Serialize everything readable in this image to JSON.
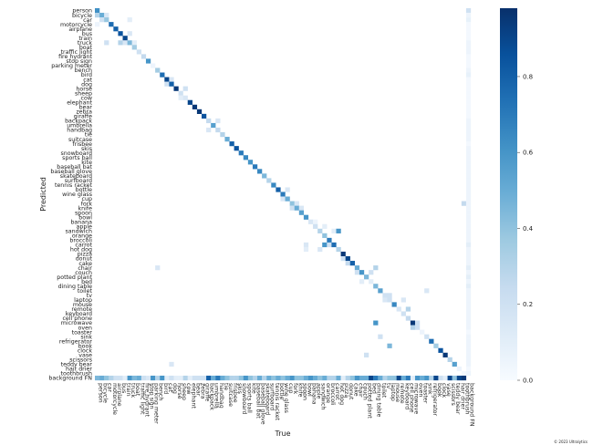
{
  "chart_data": {
    "type": "heatmap",
    "title": "",
    "xlabel": "True",
    "ylabel": "Predicted",
    "classes": [
      "person",
      "bicycle",
      "car",
      "motorcycle",
      "airplane",
      "bus",
      "train",
      "truck",
      "boat",
      "traffic light",
      "fire hydrant",
      "stop sign",
      "parking meter",
      "bench",
      "bird",
      "cat",
      "dog",
      "horse",
      "sheep",
      "cow",
      "elephant",
      "bear",
      "zebra",
      "giraffe",
      "backpack",
      "umbrella",
      "handbag",
      "tie",
      "suitcase",
      "frisbee",
      "skis",
      "snowboard",
      "sports ball",
      "kite",
      "baseball bat",
      "baseball glove",
      "skateboard",
      "surfboard",
      "tennis racket",
      "bottle",
      "wine glass",
      "cup",
      "fork",
      "knife",
      "spoon",
      "bowl",
      "banana",
      "apple",
      "sandwich",
      "orange",
      "broccoli",
      "carrot",
      "hot dog",
      "pizza",
      "donut",
      "cake",
      "chair",
      "couch",
      "potted plant",
      "bed",
      "dining table",
      "toilet",
      "tv",
      "laptop",
      "mouse",
      "remote",
      "keyboard",
      "cell phone",
      "microwave",
      "oven",
      "toaster",
      "sink",
      "refrigerator",
      "book",
      "clock",
      "vase",
      "scissors",
      "teddy bear",
      "hair drier",
      "toothbrush",
      "background FN"
    ],
    "x_categories_ref": "classes",
    "y_categories_ref": "classes",
    "diagonal_values": [
      0.62,
      0.5,
      0.38,
      0.75,
      0.8,
      0.85,
      0.9,
      0.45,
      0.35,
      0.2,
      0.25,
      0.6,
      0.05,
      0.35,
      0.75,
      0.9,
      0.8,
      0.95,
      0.2,
      0.15,
      0.9,
      0.95,
      0.95,
      0.85,
      0.25,
      0.55,
      0.25,
      0.3,
      0.5,
      0.8,
      0.85,
      0.7,
      0.65,
      0.6,
      0.7,
      0.65,
      0.45,
      0.3,
      0.65,
      0.8,
      0.7,
      0.5,
      0.4,
      0.5,
      0.55,
      0.6,
      0.15,
      0.2,
      0.3,
      0.4,
      0.7,
      0.75,
      0.3,
      0.95,
      0.9,
      0.8,
      0.5,
      0.6,
      0.45,
      0.1,
      0.45,
      0.55,
      0.2,
      0.2,
      0.65,
      0.15,
      0.2,
      0.25,
      0.95,
      0.2,
      0.05,
      0.2,
      0.75,
      0.35,
      0.85,
      0.95,
      0.3,
      0.55,
      0.05,
      0.02,
      0.0
    ],
    "off_diagonal": [
      {
        "x": "person",
        "y": "bicycle",
        "value": 0.3
      },
      {
        "x": "car",
        "y": "bicycle",
        "value": 0.15
      },
      {
        "x": "bicycle",
        "y": "car",
        "value": 0.2
      },
      {
        "x": "truck",
        "y": "car",
        "value": 0.1
      },
      {
        "x": "bus",
        "y": "truck",
        "value": 0.3
      },
      {
        "x": "car",
        "y": "truck",
        "value": 0.2
      },
      {
        "x": "train",
        "y": "truck",
        "value": 0.15
      },
      {
        "x": "truck",
        "y": "bus",
        "value": 0.15
      },
      {
        "x": "boat",
        "y": "truck",
        "value": 0.1
      },
      {
        "x": "person",
        "y": "motorcycle",
        "value": 0.05
      },
      {
        "x": "dog",
        "y": "cat",
        "value": 0.15
      },
      {
        "x": "cat",
        "y": "dog",
        "value": 0.2
      },
      {
        "x": "cow",
        "y": "horse",
        "value": 0.2
      },
      {
        "x": "sheep",
        "y": "cow",
        "value": 0.1
      },
      {
        "x": "handbag",
        "y": "backpack",
        "value": 0.15
      },
      {
        "x": "backpack",
        "y": "handbag",
        "value": 0.15
      },
      {
        "x": "knife",
        "y": "fork",
        "value": 0.15
      },
      {
        "x": "fork",
        "y": "knife",
        "value": 0.2
      },
      {
        "x": "spoon",
        "y": "knife",
        "value": 0.15
      },
      {
        "x": "wine glass",
        "y": "cup",
        "value": 0.15
      },
      {
        "x": "cup",
        "y": "bottle",
        "value": 0.15
      },
      {
        "x": "sandwich",
        "y": "hot dog",
        "value": 0.15
      },
      {
        "x": "hot dog",
        "y": "sandwich",
        "value": 0.6
      },
      {
        "x": "carrot",
        "y": "sandwich",
        "value": 0.1
      },
      {
        "x": "orange",
        "y": "carrot",
        "value": 0.6
      },
      {
        "x": "broccoli",
        "y": "carrot",
        "value": 0.2
      },
      {
        "x": "bowl",
        "y": "carrot",
        "value": 0.15
      },
      {
        "x": "bowl",
        "y": "hot dog",
        "value": 0.1
      },
      {
        "x": "pizza",
        "y": "donut",
        "value": 0.2
      },
      {
        "x": "donut",
        "y": "cake",
        "value": 0.25
      },
      {
        "x": "bench",
        "y": "chair",
        "value": 0.15
      },
      {
        "x": "chair",
        "y": "couch",
        "value": 0.2
      },
      {
        "x": "bed",
        "y": "couch",
        "value": 0.2
      },
      {
        "x": "dining table",
        "y": "chair",
        "value": 0.3
      },
      {
        "x": "couch",
        "y": "bed",
        "value": 0.1
      },
      {
        "x": "laptop",
        "y": "tv",
        "value": 0.2
      },
      {
        "x": "keyboard",
        "y": "laptop",
        "value": 0.15
      },
      {
        "x": "tv",
        "y": "laptop",
        "value": 0.15
      },
      {
        "x": "cell phone",
        "y": "remote",
        "value": 0.3
      },
      {
        "x": "oven",
        "y": "microwave",
        "value": 0.2
      },
      {
        "x": "dining table",
        "y": "microwave",
        "value": 0.6
      },
      {
        "x": "microwave",
        "y": "oven",
        "value": 0.3
      },
      {
        "x": "laptop",
        "y": "book",
        "value": 0.45
      },
      {
        "x": "sink",
        "y": "toilet",
        "value": 0.15
      },
      {
        "x": "toilet",
        "y": "sink",
        "value": 0.2
      },
      {
        "x": "potted plant",
        "y": "vase",
        "value": 0.2
      },
      {
        "x": "dog",
        "y": "teddy bear",
        "value": 0.15
      },
      {
        "x": "toothbrush",
        "y": "fork",
        "value": 0.25
      },
      {
        "x": "apple",
        "y": "banana",
        "value": 0.05
      },
      {
        "x": "orange",
        "y": "apple",
        "value": 0.1
      }
    ],
    "background_FN_row": [
      0.45,
      0.5,
      0.4,
      0.3,
      0.2,
      0.2,
      0.1,
      0.6,
      0.45,
      0.5,
      0.2,
      0.15,
      0.6,
      0.3,
      0.6,
      0.1,
      0.2,
      0.1,
      0.1,
      0.3,
      0.1,
      0.2,
      0.2,
      0.2,
      0.8,
      0.5,
      0.7,
      0.5,
      0.4,
      0.3,
      0.3,
      0.4,
      0.6,
      0.4,
      0.3,
      0.5,
      0.3,
      0.5,
      0.4,
      0.5,
      0.4,
      0.5,
      0.6,
      0.4,
      0.4,
      0.5,
      0.6,
      0.5,
      0.4,
      0.5,
      0.3,
      0.3,
      0.5,
      0.1,
      0.3,
      0.4,
      0.6,
      0.5,
      0.5,
      0.9,
      0.7,
      0.5,
      0.3,
      0.4,
      0.4,
      0.9,
      0.5,
      0.7,
      0.1,
      0.6,
      0.5,
      0.6,
      0.3,
      0.9,
      0.2,
      0.1,
      0.9,
      0.4,
      0.9,
      0.95,
      0.0
    ],
    "background_FP_column": [
      0.2,
      0.05,
      0.08,
      0.02,
      0.02,
      0.02,
      0.02,
      0.05,
      0.05,
      0.05,
      0.02,
      0.02,
      0.02,
      0.05,
      0.08,
      0.02,
      0.02,
      0.02,
      0.02,
      0.02,
      0.02,
      0.02,
      0.02,
      0.02,
      0.05,
      0.05,
      0.05,
      0.05,
      0.05,
      0.02,
      0.05,
      0.05,
      0.05,
      0.05,
      0.05,
      0.05,
      0.05,
      0.05,
      0.05,
      0.05,
      0.05,
      0.05,
      0.05,
      0.05,
      0.05,
      0.05,
      0.05,
      0.05,
      0.05,
      0.05,
      0.05,
      0.1,
      0.05,
      0.05,
      0.05,
      0.05,
      0.1,
      0.05,
      0.1,
      0.05,
      0.1,
      0.05,
      0.05,
      0.05,
      0.05,
      0.05,
      0.05,
      0.05,
      0.05,
      0.05,
      0.02,
      0.05,
      0.05,
      0.05,
      0.05,
      0.05,
      0.05,
      0.05,
      0.02,
      0.05,
      0.0
    ],
    "colorbar": {
      "range": [
        0.0,
        0.98
      ],
      "ticks": [
        0.0,
        0.2,
        0.4,
        0.6,
        0.8
      ],
      "tick_labels": [
        "0.0",
        "0.2",
        "0.4",
        "0.6",
        "0.8"
      ],
      "colormap": "Blues",
      "low_color": "#f7fbff",
      "high_color": "#08306b"
    },
    "grid": false,
    "legend": "none"
  },
  "watermark": "© 2023 Ultralytics"
}
